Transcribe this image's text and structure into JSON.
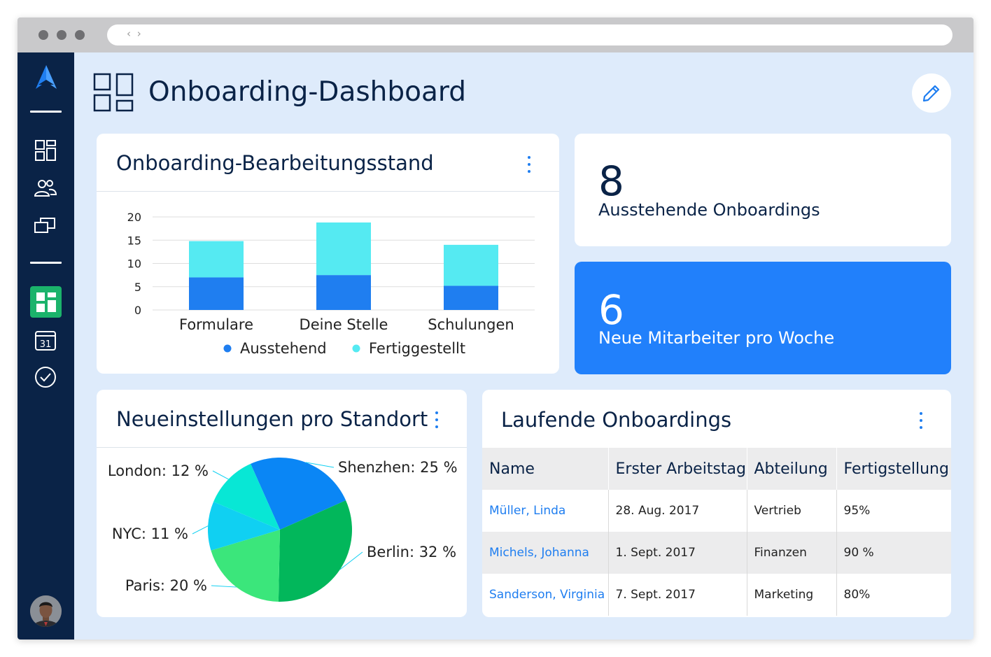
{
  "app": {
    "title": "Onboarding-Dashboard",
    "nav_arrows": "‹ ›"
  },
  "sidebar": {
    "logo_icon": "app-logo-icon",
    "items": [
      {
        "icon": "dashboard-grid-icon"
      },
      {
        "icon": "people-icon"
      },
      {
        "icon": "stacked-windows-icon"
      },
      {
        "icon": "tiles-icon",
        "active": true
      },
      {
        "icon": "calendar-icon",
        "label": "31"
      },
      {
        "icon": "check-circle-icon"
      }
    ],
    "avatar_icon": "user-avatar"
  },
  "colors": {
    "navy": "#0a2347",
    "accent": "#1f7ef0",
    "blue_card": "#2180fb",
    "active_nav": "#1bb36b",
    "pending": "#1f7ef0",
    "completed": "#55eaf2"
  },
  "progress_card": {
    "title": "Onboarding-Bearbeitungsstand"
  },
  "stats": {
    "pending": {
      "value": "8",
      "label": "Ausstehende Onboardings"
    },
    "weekly": {
      "value": "6",
      "label": "Neue Mitarbeiter pro Woche"
    }
  },
  "location_card": {
    "title": "Neueinstellungen pro Standort"
  },
  "table_card": {
    "title": "Laufende Onboardings",
    "columns": [
      "Name",
      "Erster Arbeitstag",
      "Abteilung",
      "Fertigstellung"
    ],
    "rows": [
      {
        "name": "Müller, Linda",
        "start": "28. Aug. 2017",
        "department": "Vertrieb",
        "completion": "95%"
      },
      {
        "name": "Michels, Johanna",
        "start": "1. Sept. 2017",
        "department": "Finanzen",
        "completion": "90 %"
      },
      {
        "name": "Sanderson, Virginia",
        "start": "7. Sept. 2017",
        "department": "Marketing",
        "completion": "80%"
      }
    ]
  },
  "chart_data": [
    {
      "type": "bar",
      "stacked": true,
      "categories": [
        "Formulare",
        "Deine Stelle",
        "Schulungen"
      ],
      "series": [
        {
          "name": "Ausstehend",
          "values": [
            7,
            7.5,
            5.2
          ],
          "color": "#1f7ef0"
        },
        {
          "name": "Fertiggestellt",
          "values": [
            7.8,
            11.3,
            8.8
          ],
          "color": "#55eaf2"
        }
      ],
      "y_ticks": [
        0,
        5,
        10,
        15,
        20
      ],
      "ylim": [
        0,
        20
      ],
      "grid": true,
      "legend_position": "bottom"
    },
    {
      "type": "pie",
      "slices": [
        {
          "label": "Shenzhen: 25 %",
          "value": 25,
          "color": "#0a86f5"
        },
        {
          "label": "Berlin: 32 %",
          "value": 32,
          "color": "#02b75b"
        },
        {
          "label": "Paris: 20 %",
          "value": 20,
          "color": "#3be67b"
        },
        {
          "label": "NYC: 11 %",
          "value": 11,
          "color": "#10d0f2"
        },
        {
          "label": "London: 12 %",
          "value": 12,
          "color": "#08e7d5"
        }
      ]
    }
  ]
}
